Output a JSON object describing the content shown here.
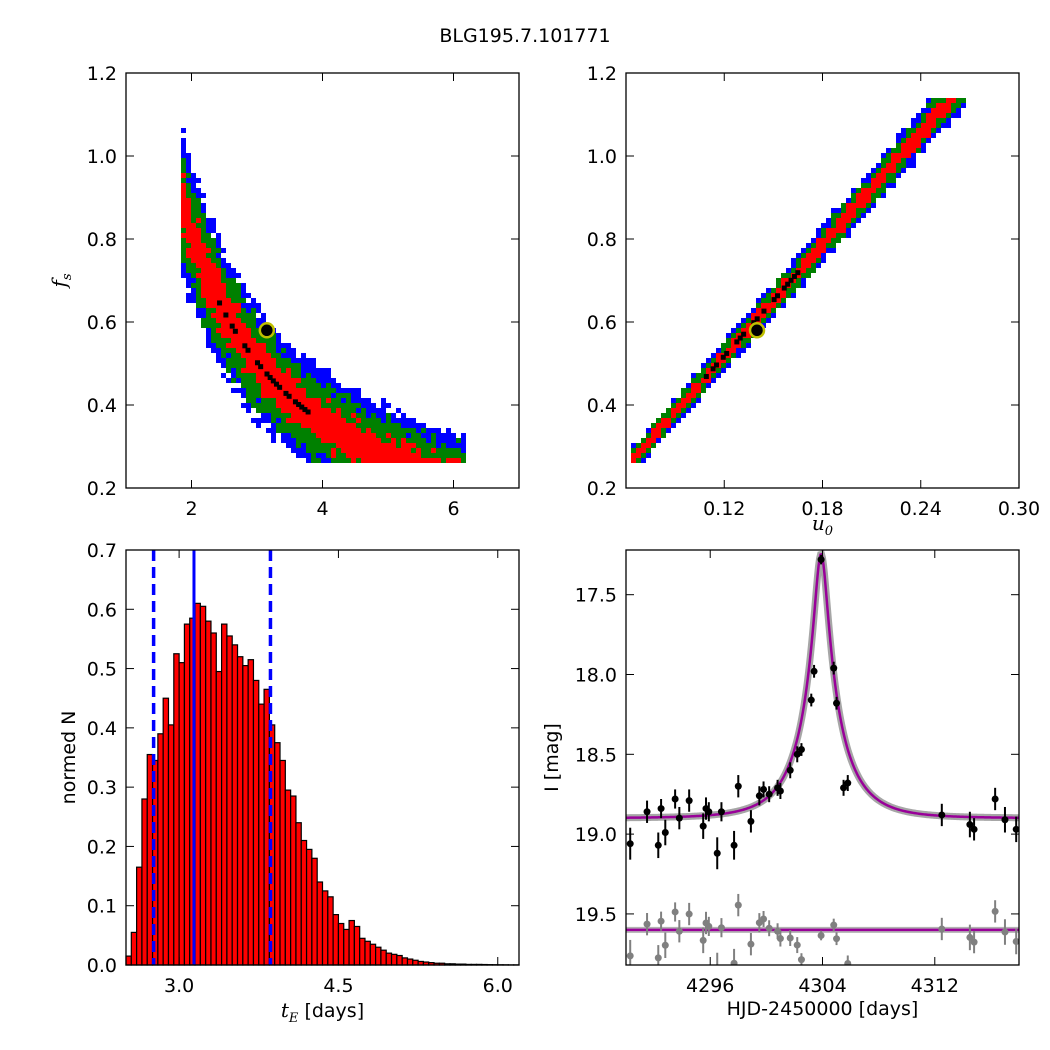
{
  "suptitle": "BLG195.7.101771",
  "colors": {
    "level1": "#0000ff",
    "level2": "#008000",
    "level3": "#ff0000",
    "best": "#000000",
    "marker_edge": "#bfbf00",
    "hist_fill": "#ff0000",
    "median_line": "#0000ff",
    "model_line": "#990099",
    "data_points": "#000000",
    "residual_points": "#808080"
  },
  "chart_data": [
    {
      "id": "tE-fs",
      "type": "heatmap",
      "ylabel_main": "f",
      "ylabel_sub": "s",
      "xlabel": "",
      "xlim": [
        1.0,
        7.0
      ],
      "ylim": [
        0.2,
        1.2
      ],
      "xticks": [
        "2",
        "4",
        "6"
      ],
      "xtick_values": [
        2,
        4,
        6
      ],
      "yticks": [
        "0.2",
        "0.4",
        "0.6",
        "0.8",
        "1.0",
        "1.2"
      ],
      "ytick_values": [
        0.2,
        0.4,
        0.6,
        0.8,
        1.0,
        1.2
      ],
      "curve": {
        "form": "power",
        "a": 1.84,
        "p": -1.18
      },
      "band_x_range": [
        1.85,
        6.2
      ],
      "band_widths": [
        0.32,
        0.18,
        0.09
      ],
      "best_fit": {
        "x": 3.15,
        "y": 0.58
      }
    },
    {
      "id": "u0-fs",
      "type": "heatmap",
      "xlabel_main": "u",
      "xlabel_sub": "0",
      "ylabel": "",
      "xlim": [
        0.06,
        0.3
      ],
      "ylim": [
        0.2,
        1.2
      ],
      "xticks": [
        "0.12",
        "0.18",
        "0.24",
        "0.30"
      ],
      "xtick_values": [
        0.12,
        0.18,
        0.24,
        0.3
      ],
      "yticks": [
        "0.2",
        "0.4",
        "0.6",
        "0.8",
        "1.0",
        "1.2"
      ],
      "ytick_values": [
        0.2,
        0.4,
        0.6,
        0.8,
        1.0,
        1.2
      ],
      "curve": {
        "form": "linear",
        "slope": 4.48,
        "intercept": -0.02
      },
      "band_x_range": [
        0.062,
        0.27
      ],
      "band_widths": [
        0.09,
        0.055,
        0.03
      ],
      "best_fit": {
        "x": 0.14,
        "y": 0.58
      }
    },
    {
      "id": "tE-hist",
      "type": "bar",
      "xlabel_main": "t",
      "xlabel_sub": "E",
      "xlabel_rest": " [days]",
      "ylabel": "normed N",
      "xlim": [
        2.5,
        6.2
      ],
      "ylim": [
        0.0,
        0.7
      ],
      "xticks": [
        "3.0",
        "4.5",
        "6.0"
      ],
      "xtick_values": [
        3.0,
        4.5,
        6.0
      ],
      "yticks": [
        "0.0",
        "0.1",
        "0.2",
        "0.3",
        "0.4",
        "0.5",
        "0.6",
        "0.7"
      ],
      "ytick_values": [
        0.0,
        0.1,
        0.2,
        0.3,
        0.4,
        0.5,
        0.6,
        0.7
      ],
      "bin_start": 2.5,
      "bin_width": 0.05,
      "values": [
        0.015,
        0.055,
        0.165,
        0.28,
        0.355,
        0.345,
        0.39,
        0.45,
        0.405,
        0.525,
        0.51,
        0.575,
        0.585,
        0.61,
        0.605,
        0.58,
        0.56,
        0.495,
        0.575,
        0.555,
        0.54,
        0.52,
        0.505,
        0.515,
        0.48,
        0.44,
        0.465,
        0.405,
        0.375,
        0.345,
        0.295,
        0.285,
        0.24,
        0.21,
        0.195,
        0.18,
        0.14,
        0.125,
        0.115,
        0.085,
        0.07,
        0.06,
        0.075,
        0.065,
        0.045,
        0.04,
        0.035,
        0.03,
        0.025,
        0.02,
        0.018,
        0.016,
        0.012,
        0.01,
        0.008,
        0.006,
        0.005,
        0.004,
        0.003,
        0.003,
        0.002,
        0.002,
        0.0015,
        0.0015,
        0.001,
        0.001,
        0.001,
        0.0008,
        0.0006,
        0.0005,
        0.0004,
        0.0003,
        0.0002,
        0.0002
      ],
      "median": 3.14,
      "lower": 2.76,
      "upper": 3.86
    },
    {
      "id": "lightcurve",
      "type": "scatter",
      "xlabel": "HJD-2450000 [days]",
      "ylabel": "I [mag]",
      "xlim": [
        4290.0,
        4318.0
      ],
      "ylim": [
        19.82,
        17.22
      ],
      "inverted_y": true,
      "xticks": [
        "4296",
        "4304",
        "4312"
      ],
      "xtick_values": [
        4296,
        4304,
        4312
      ],
      "yticks": [
        "17.5",
        "18.0",
        "18.5",
        "19.0",
        "19.5"
      ],
      "ytick_values": [
        17.5,
        18.0,
        18.5,
        19.0,
        19.5
      ],
      "model": {
        "t0": 4303.9,
        "u0": 0.14,
        "tE": 3.15,
        "fs": 0.58,
        "base": 18.9
      },
      "residual_offset": 19.6,
      "data": [
        {
          "t": 4290.3,
          "m": 19.06,
          "e": 0.1
        },
        {
          "t": 4291.5,
          "m": 18.86,
          "e": 0.07
        },
        {
          "t": 4292.3,
          "m": 19.07,
          "e": 0.08
        },
        {
          "t": 4292.5,
          "m": 18.84,
          "e": 0.06
        },
        {
          "t": 4292.8,
          "m": 18.99,
          "e": 0.08
        },
        {
          "t": 4293.5,
          "m": 18.78,
          "e": 0.06
        },
        {
          "t": 4293.8,
          "m": 18.9,
          "e": 0.07
        },
        {
          "t": 4294.5,
          "m": 18.79,
          "e": 0.07
        },
        {
          "t": 4295.5,
          "m": 18.95,
          "e": 0.08
        },
        {
          "t": 4295.7,
          "m": 18.84,
          "e": 0.07
        },
        {
          "t": 4295.9,
          "m": 18.86,
          "e": 0.06
        },
        {
          "t": 4296.5,
          "m": 19.12,
          "e": 0.1
        },
        {
          "t": 4296.8,
          "m": 18.86,
          "e": 0.06
        },
        {
          "t": 4297.7,
          "m": 19.07,
          "e": 0.09
        },
        {
          "t": 4298.0,
          "m": 18.7,
          "e": 0.07
        },
        {
          "t": 4298.9,
          "m": 18.92,
          "e": 0.07
        },
        {
          "t": 4299.5,
          "m": 18.76,
          "e": 0.06
        },
        {
          "t": 4299.8,
          "m": 18.72,
          "e": 0.05
        },
        {
          "t": 4300.2,
          "m": 18.75,
          "e": 0.05
        },
        {
          "t": 4300.8,
          "m": 18.71,
          "e": 0.05
        },
        {
          "t": 4301.0,
          "m": 18.73,
          "e": 0.05
        },
        {
          "t": 4301.7,
          "m": 18.6,
          "e": 0.05
        },
        {
          "t": 4302.2,
          "m": 18.5,
          "e": 0.05
        },
        {
          "t": 4302.5,
          "m": 18.47,
          "e": 0.04
        },
        {
          "t": 4303.2,
          "m": 18.16,
          "e": 0.04
        },
        {
          "t": 4303.4,
          "m": 17.98,
          "e": 0.04
        },
        {
          "t": 4303.9,
          "m": 17.28,
          "e": 0.03
        },
        {
          "t": 4304.8,
          "m": 17.96,
          "e": 0.04
        },
        {
          "t": 4305.0,
          "m": 18.18,
          "e": 0.04
        },
        {
          "t": 4305.5,
          "m": 18.71,
          "e": 0.05
        },
        {
          "t": 4305.8,
          "m": 18.68,
          "e": 0.05
        },
        {
          "t": 4312.5,
          "m": 18.88,
          "e": 0.07
        },
        {
          "t": 4314.5,
          "m": 18.94,
          "e": 0.08
        },
        {
          "t": 4314.8,
          "m": 18.97,
          "e": 0.07
        },
        {
          "t": 4316.3,
          "m": 18.78,
          "e": 0.07
        },
        {
          "t": 4317.0,
          "m": 18.91,
          "e": 0.08
        },
        {
          "t": 4317.8,
          "m": 18.97,
          "e": 0.08
        }
      ]
    }
  ]
}
